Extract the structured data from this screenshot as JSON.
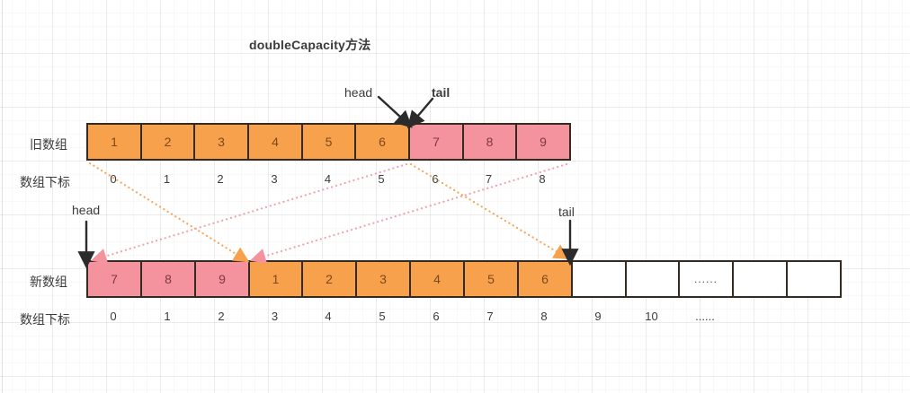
{
  "title": "doubleCapacity方法",
  "labels": {
    "old_array": "旧数组",
    "new_array": "新数组",
    "index_row": "数组下标",
    "head": "head",
    "tail": "tail"
  },
  "colors": {
    "orange": "#F7A14D",
    "pink": "#F4939E",
    "orange_line": "#F6A75C",
    "pink_line": "#F2A3AE",
    "orange_text": "#7C4A1A",
    "pink_text": "#7E3A41",
    "cell_border": "#332A22",
    "ink": "#2B2B2B",
    "label_text": "#3B3B3B"
  },
  "old_array": {
    "cells": [
      {
        "value": "1",
        "type": "orange"
      },
      {
        "value": "2",
        "type": "orange"
      },
      {
        "value": "3",
        "type": "orange"
      },
      {
        "value": "4",
        "type": "orange"
      },
      {
        "value": "5",
        "type": "orange"
      },
      {
        "value": "6",
        "type": "orange"
      },
      {
        "value": "7",
        "type": "pink"
      },
      {
        "value": "8",
        "type": "pink"
      },
      {
        "value": "9",
        "type": "pink"
      }
    ],
    "indices": [
      "0",
      "1",
      "2",
      "3",
      "4",
      "5",
      "6",
      "7",
      "8"
    ]
  },
  "new_array": {
    "cells": [
      {
        "value": "7",
        "type": "pink"
      },
      {
        "value": "8",
        "type": "pink"
      },
      {
        "value": "9",
        "type": "pink"
      },
      {
        "value": "1",
        "type": "orange"
      },
      {
        "value": "2",
        "type": "orange"
      },
      {
        "value": "3",
        "type": "orange"
      },
      {
        "value": "4",
        "type": "orange"
      },
      {
        "value": "5",
        "type": "orange"
      },
      {
        "value": "6",
        "type": "orange"
      },
      {
        "value": "",
        "type": "empty"
      },
      {
        "value": "",
        "type": "empty"
      },
      {
        "value": "......",
        "type": "empty"
      },
      {
        "value": "",
        "type": "empty"
      },
      {
        "value": "",
        "type": "empty"
      }
    ],
    "indices": [
      "0",
      "1",
      "2",
      "3",
      "4",
      "5",
      "6",
      "7",
      "8",
      "9",
      "10",
      "......"
    ]
  }
}
